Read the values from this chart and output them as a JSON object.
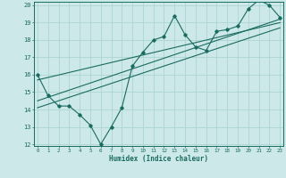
{
  "title": "",
  "xlabel": "Humidex (Indice chaleur)",
  "bg_color": "#cce8e8",
  "line_color": "#1a6b60",
  "grid_color": "#aed4d4",
  "x_min": 0,
  "x_max": 23,
  "y_min": 12,
  "y_max": 20,
  "zigzag_x": [
    0,
    1,
    2,
    3,
    4,
    5,
    6,
    7,
    8,
    9,
    10,
    11,
    12,
    13,
    14,
    15,
    16,
    17,
    18,
    19,
    20,
    21,
    22,
    23
  ],
  "zigzag_y": [
    16,
    14.8,
    14.2,
    14.2,
    13.7,
    13.1,
    12.0,
    13.0,
    14.1,
    16.5,
    17.3,
    18.0,
    18.2,
    19.4,
    18.3,
    17.6,
    17.4,
    18.5,
    18.6,
    18.8,
    19.8,
    20.3,
    20.0,
    19.3
  ],
  "line1_x": [
    0,
    23
  ],
  "line1_y": [
    14.5,
    19.2
  ],
  "line2_x": [
    0,
    23
  ],
  "line2_y": [
    15.7,
    19.0
  ],
  "line3_x": [
    0,
    23
  ],
  "line3_y": [
    14.1,
    18.7
  ]
}
